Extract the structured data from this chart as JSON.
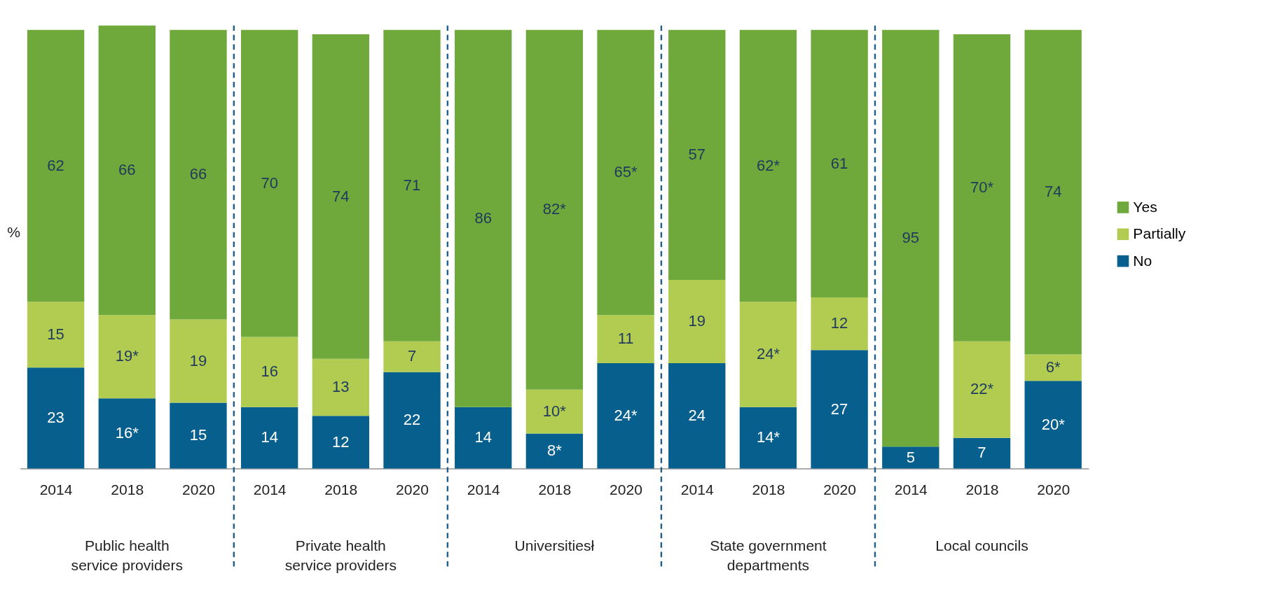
{
  "chart_data": {
    "type": "bar",
    "stacked": true,
    "ylabel": "%",
    "tick_labels": "x",
    "legend": "right",
    "grid": false,
    "categories": [
      "2014",
      "2018",
      "2020",
      "2014",
      "2018",
      "2020",
      "2014",
      "2018",
      "2020",
      "2014",
      "2018",
      "2020",
      "2014",
      "2018",
      "2020"
    ],
    "annotations": [
      "Public health service providers",
      "Private health service providers",
      "Universitiesł",
      "State government departments",
      "Local councils"
    ],
    "series": [
      {
        "name": "No",
        "color": "#075f8d",
        "values": [
          23,
          16,
          15,
          14,
          12,
          22,
          14,
          8,
          24,
          24,
          14,
          27,
          5,
          7,
          20
        ],
        "value_labels": [
          "23",
          "16*",
          "15",
          "14",
          "12",
          "22",
          "14",
          "8*",
          "24*",
          "24",
          "14*",
          "27",
          "5",
          "7",
          "20*"
        ]
      },
      {
        "name": "Partially",
        "color": "#b2cc52",
        "values": [
          15,
          19,
          19,
          16,
          13,
          7,
          null,
          10,
          11,
          19,
          24,
          12,
          null,
          22,
          6
        ],
        "value_labels": [
          "15",
          "19*",
          "19",
          "16",
          "13",
          "7",
          null,
          "10*",
          "11",
          "19",
          "24*",
          "12",
          null,
          "22*",
          "6*"
        ]
      },
      {
        "name": "Yes",
        "color": "#6fa83b",
        "values": [
          62,
          66,
          66,
          70,
          74,
          71,
          86,
          82,
          65,
          57,
          62,
          61,
          95,
          70,
          74
        ],
        "value_labels": [
          "62",
          "66",
          "66",
          "70",
          "74",
          "71",
          "86",
          "82*",
          "65*",
          "57",
          "62*",
          "61",
          "95",
          "70*",
          "74"
        ]
      }
    ]
  }
}
